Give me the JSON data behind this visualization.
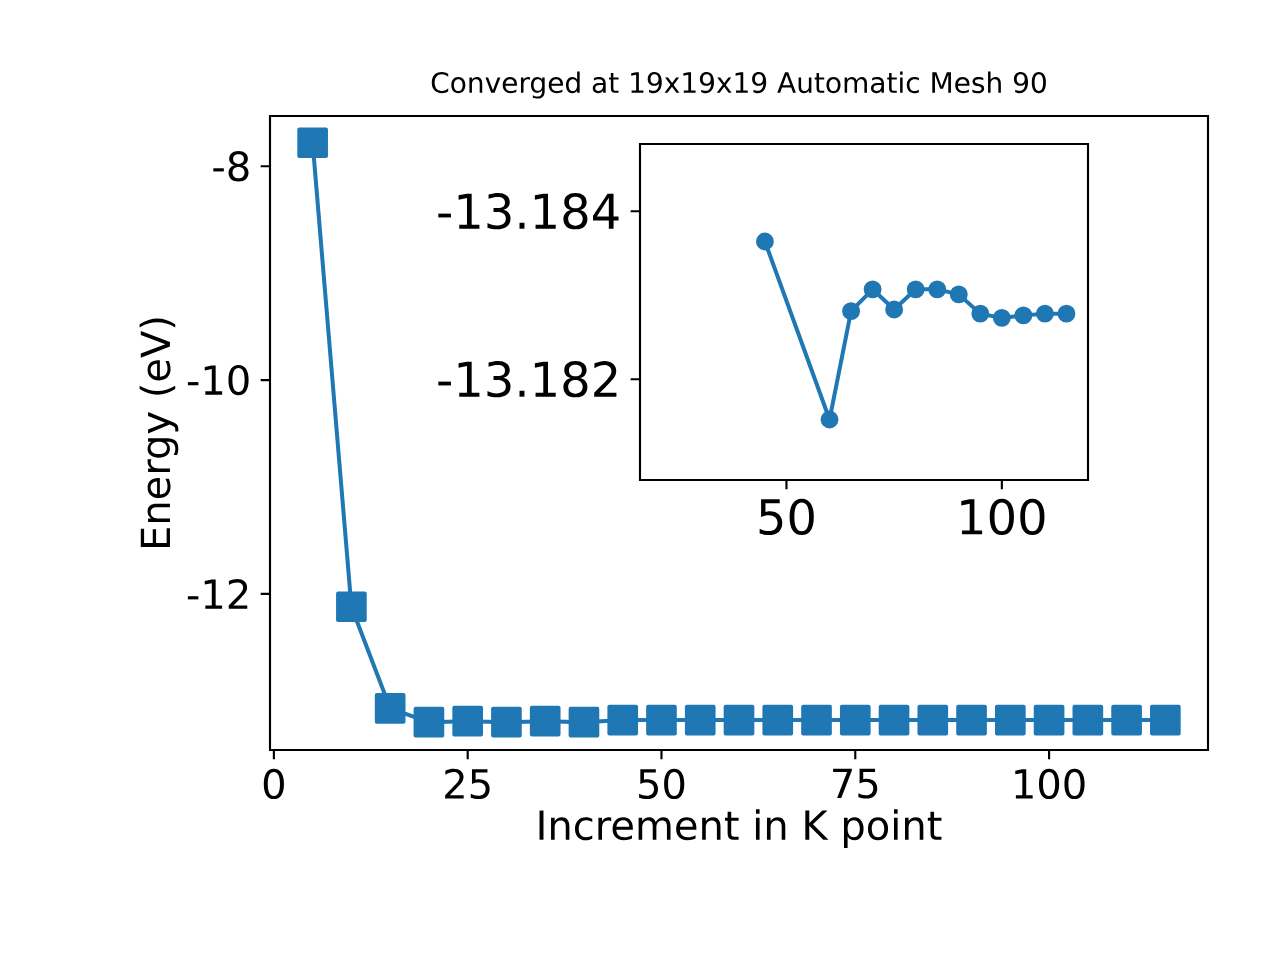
{
  "chart_data": [
    {
      "type": "line",
      "title": "Converged at 19x19x19 Automatic Mesh 90",
      "xlabel": "Increment in K point",
      "ylabel": "Energy (eV)",
      "color": "#1f77b4",
      "marker": "square",
      "x": [
        5,
        10,
        15,
        20,
        25,
        30,
        35,
        40,
        45,
        50,
        55,
        60,
        65,
        70,
        75,
        80,
        85,
        90,
        95,
        100,
        105,
        110,
        115
      ],
      "values": [
        -7.78,
        -12.12,
        -13.07,
        -13.2,
        -13.19,
        -13.2,
        -13.19,
        -13.2,
        -13.18,
        -13.18,
        -13.18,
        -13.18,
        -13.18,
        -13.18,
        -13.18,
        -13.18,
        -13.18,
        -13.18,
        -13.18,
        -13.18,
        -13.18,
        -13.18,
        -13.18
      ],
      "xlim": [
        -0.5,
        120.5
      ],
      "ylim": [
        -13.46,
        -7.53
      ],
      "xticks": [
        0,
        25,
        50,
        75,
        100
      ],
      "yticks": [
        -12,
        -10,
        -8
      ]
    },
    {
      "type": "line",
      "color": "#1f77b4",
      "marker": "circle",
      "x": [
        45,
        60,
        65,
        70,
        75,
        80,
        85,
        90,
        95,
        100,
        105,
        110,
        115
      ],
      "values": [
        -13.18364,
        -13.18152,
        -13.18281,
        -13.18307,
        -13.18283,
        -13.18307,
        -13.18307,
        -13.18301,
        -13.18278,
        -13.18273,
        -13.18276,
        -13.18278,
        -13.18278
      ],
      "xlim": [
        16,
        120
      ],
      "ylim": [
        -13.1808,
        -13.1848
      ],
      "xticks": [
        50,
        100
      ],
      "yticks": [
        -13.184,
        -13.182
      ]
    }
  ]
}
